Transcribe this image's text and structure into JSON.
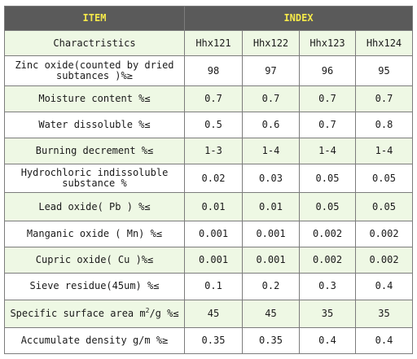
{
  "header": {
    "item": "ITEM",
    "index": "INDEX"
  },
  "columns": {
    "label": "Charactristics",
    "grades": [
      "Hhx121",
      "Hhx122",
      "Hhx123",
      "Hhx124"
    ]
  },
  "rows": [
    {
      "name": "Zinc oxide(counted by dried subtances )%≥",
      "values": [
        "98",
        "97",
        "96",
        "95"
      ]
    },
    {
      "name": "Moisture content %≤",
      "values": [
        "0.7",
        "0.7",
        "0.7",
        "0.7"
      ]
    },
    {
      "name": "Water dissoluble %≤",
      "values": [
        "0.5",
        "0.6",
        "0.7",
        "0.8"
      ]
    },
    {
      "name": "Burning decrement %≤",
      "values": [
        "1-3",
        "1-4",
        "1-4",
        "1-4"
      ]
    },
    {
      "name": "Hydrochloric indissoluble substance %",
      "values": [
        "0.02",
        "0.03",
        "0.05",
        "0.05"
      ]
    },
    {
      "name": "Lead oxide( Pb ) %≤",
      "values": [
        "0.01",
        "0.01",
        "0.05",
        "0.05"
      ]
    },
    {
      "name": "Manganic oxide ( Mn) %≤",
      "values": [
        "0.001",
        "0.001",
        "0.002",
        "0.002"
      ]
    },
    {
      "name": "Cupric oxide( Cu )%≤",
      "values": [
        "0.001",
        "0.001",
        "0.002",
        "0.002"
      ]
    },
    {
      "name": "Sieve residue(45um) %≤",
      "values": [
        "0.1",
        "0.2",
        "0.3",
        "0.4"
      ]
    },
    {
      "name": "Specific surface area m",
      "name_sup": "2",
      "name_tail": "/g %≤",
      "values": [
        "45",
        "45",
        "35",
        "35"
      ]
    },
    {
      "name": "Accumulate density g/m %≥",
      "values": [
        "0.35",
        "0.35",
        "0.4",
        "0.4"
      ]
    }
  ],
  "colors": {
    "header_bg": "#5a5a5a",
    "header_text": "#f5e94a",
    "row_tint": "#eef8e4",
    "border": "#7c7c7c"
  }
}
